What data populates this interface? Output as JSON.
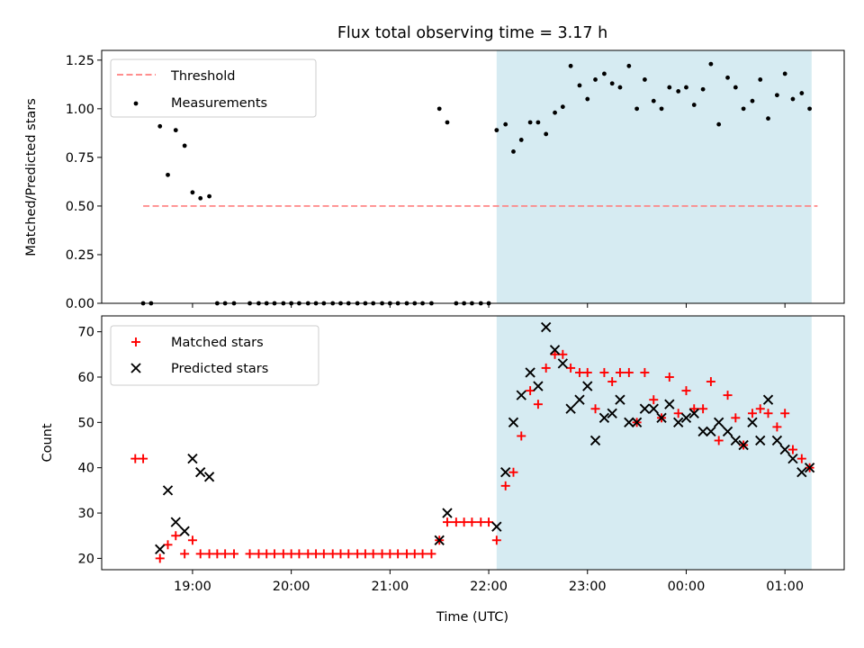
{
  "title": "Flux total observing time = 3.17 h",
  "xlabel": "Time (UTC)",
  "x_ticks": [
    "19:00",
    "20:00",
    "21:00",
    "22:00",
    "23:00",
    "00:00",
    "01:00"
  ],
  "x_tick_hours": [
    19,
    20,
    21,
    22,
    23,
    24,
    25
  ],
  "xlim_hours": [
    18.08,
    25.6
  ],
  "shaded_region_hours": [
    22.08,
    25.27
  ],
  "colors": {
    "threshold": "#ff7f7f",
    "measurements": "#000000",
    "matched": "#ff0000",
    "predicted": "#000000",
    "shade": "#add8e6"
  },
  "chart_data": [
    {
      "type": "scatter",
      "title": "Flux total observing time = 3.17 h",
      "ylabel": "Matched/Predicted stars",
      "ylim": [
        0,
        1.3
      ],
      "y_ticks": [
        "0.00",
        "0.25",
        "0.50",
        "0.75",
        "1.00",
        "1.25"
      ],
      "y_tick_values": [
        0,
        0.25,
        0.5,
        0.75,
        1.0,
        1.25
      ],
      "legend": {
        "position": "top-left",
        "entries": [
          "Threshold",
          "Measurements"
        ]
      },
      "threshold": {
        "name": "Threshold",
        "value": 0.5,
        "x_range": [
          18.5,
          25.33
        ]
      },
      "series": [
        {
          "name": "Measurements",
          "x": [
            18.5,
            18.58,
            18.67,
            18.75,
            18.83,
            18.92,
            19.0,
            19.08,
            19.17,
            19.25,
            19.33,
            19.42,
            19.58,
            19.67,
            19.75,
            19.83,
            19.92,
            20.0,
            20.08,
            20.17,
            20.25,
            20.33,
            20.42,
            20.5,
            20.58,
            20.67,
            20.75,
            20.83,
            20.92,
            21.0,
            21.08,
            21.17,
            21.25,
            21.33,
            21.42,
            21.5,
            21.58,
            21.67,
            21.75,
            21.83,
            21.92,
            22.0,
            22.08,
            22.17,
            22.25,
            22.33,
            22.42,
            22.5,
            22.58,
            22.67,
            22.75,
            22.83,
            22.92,
            23.0,
            23.08,
            23.17,
            23.25,
            23.33,
            23.42,
            23.5,
            23.58,
            23.67,
            23.75,
            23.83,
            23.92,
            24.0,
            24.08,
            24.17,
            24.25,
            24.33,
            24.42,
            24.5,
            24.58,
            24.67,
            24.75,
            24.83,
            24.92,
            25.0,
            25.08,
            25.17,
            25.25
          ],
          "y": [
            0.0,
            0.0,
            0.91,
            0.66,
            0.89,
            0.81,
            0.57,
            0.54,
            0.55,
            0.0,
            0.0,
            0.0,
            0.0,
            0.0,
            0.0,
            0.0,
            0.0,
            0.0,
            0.0,
            0.0,
            0.0,
            0.0,
            0.0,
            0.0,
            0.0,
            0.0,
            0.0,
            0.0,
            0.0,
            0.0,
            0.0,
            0.0,
            0.0,
            0.0,
            0.0,
            1.0,
            0.93,
            0.0,
            0.0,
            0.0,
            0.0,
            0.0,
            0.89,
            0.92,
            0.78,
            0.84,
            0.93,
            0.93,
            0.87,
            0.98,
            1.01,
            1.22,
            1.12,
            1.05,
            1.15,
            1.18,
            1.13,
            1.11,
            1.22,
            1.0,
            1.15,
            1.04,
            1.0,
            1.11,
            1.09,
            1.11,
            1.02,
            1.1,
            1.23,
            0.92,
            1.16,
            1.11,
            1.0,
            1.04,
            1.15,
            0.95,
            1.07,
            1.18,
            1.05,
            1.08,
            1.0
          ]
        }
      ]
    },
    {
      "type": "scatter",
      "ylabel": "Count",
      "ylim": [
        17.5,
        73.5
      ],
      "y_ticks": [
        "20",
        "30",
        "40",
        "50",
        "60",
        "70"
      ],
      "y_tick_values": [
        20,
        30,
        40,
        50,
        60,
        70
      ],
      "legend": {
        "position": "top-left",
        "entries": [
          "Matched stars",
          "Predicted stars"
        ]
      },
      "series": [
        {
          "name": "Matched stars",
          "marker": "plus",
          "x": [
            18.42,
            18.5,
            18.67,
            18.75,
            18.83,
            18.92,
            19.0,
            19.08,
            19.17,
            19.25,
            19.33,
            19.42,
            19.58,
            19.67,
            19.75,
            19.83,
            19.92,
            20.0,
            20.08,
            20.17,
            20.25,
            20.33,
            20.42,
            20.5,
            20.58,
            20.67,
            20.75,
            20.83,
            20.92,
            21.0,
            21.08,
            21.17,
            21.25,
            21.33,
            21.42,
            21.5,
            21.58,
            21.67,
            21.75,
            21.83,
            21.92,
            22.0,
            22.08,
            22.17,
            22.25,
            22.33,
            22.42,
            22.5,
            22.58,
            22.67,
            22.75,
            22.83,
            22.92,
            23.0,
            23.08,
            23.17,
            23.25,
            23.33,
            23.42,
            23.5,
            23.58,
            23.67,
            23.75,
            23.83,
            23.92,
            24.0,
            24.08,
            24.17,
            24.25,
            24.33,
            24.42,
            24.5,
            24.58,
            24.67,
            24.75,
            24.83,
            24.92,
            25.0,
            25.08,
            25.17,
            25.25
          ],
          "y": [
            42,
            42,
            20,
            23,
            25,
            21,
            24,
            21,
            21,
            21,
            21,
            21,
            21,
            21,
            21,
            21,
            21,
            21,
            21,
            21,
            21,
            21,
            21,
            21,
            21,
            21,
            21,
            21,
            21,
            21,
            21,
            21,
            21,
            21,
            21,
            24,
            28,
            28,
            28,
            28,
            28,
            28,
            24,
            36,
            39,
            47,
            57,
            54,
            62,
            65,
            65,
            62,
            61,
            61,
            53,
            61,
            59,
            61,
            61,
            50,
            61,
            55,
            51,
            60,
            52,
            57,
            53,
            53,
            59,
            46,
            56,
            51,
            45,
            52,
            53,
            52,
            49,
            52,
            44,
            42,
            40
          ]
        },
        {
          "name": "Predicted stars",
          "marker": "x",
          "x": [
            18.67,
            18.75,
            18.83,
            18.92,
            19.0,
            19.08,
            19.17,
            21.5,
            21.58,
            22.08,
            22.17,
            22.25,
            22.33,
            22.42,
            22.5,
            22.58,
            22.67,
            22.75,
            22.83,
            22.92,
            23.0,
            23.08,
            23.17,
            23.25,
            23.33,
            23.42,
            23.5,
            23.58,
            23.67,
            23.75,
            23.83,
            23.92,
            24.0,
            24.08,
            24.17,
            24.25,
            24.33,
            24.42,
            24.5,
            24.58,
            24.67,
            24.75,
            24.83,
            24.92,
            25.0,
            25.08,
            25.17,
            25.25
          ],
          "y": [
            22,
            35,
            28,
            26,
            42,
            39,
            38,
            24,
            30,
            27,
            39,
            50,
            56,
            61,
            58,
            71,
            66,
            63,
            53,
            55,
            58,
            46,
            51,
            52,
            55,
            50,
            50,
            53,
            53,
            51,
            54,
            50,
            51,
            52,
            48,
            48,
            50,
            48,
            46,
            45,
            50,
            46,
            55,
            46,
            44,
            42,
            39,
            40
          ]
        }
      ]
    }
  ]
}
